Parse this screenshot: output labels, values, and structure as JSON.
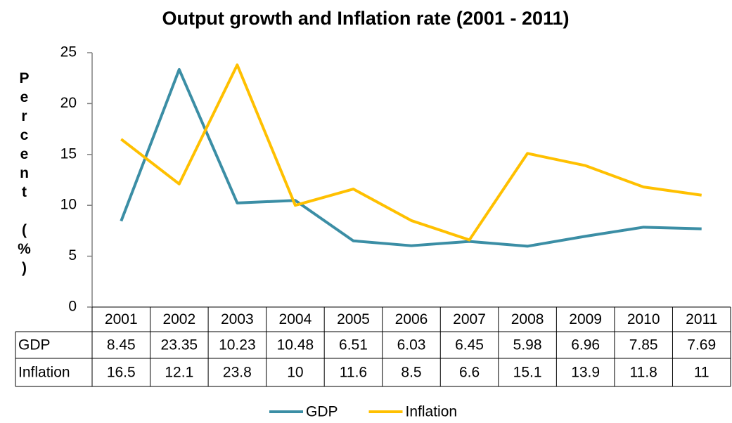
{
  "chart_data": {
    "type": "line",
    "title": "Output growth and Inflation rate (2001 - 2011)",
    "y_label": "Percent (%)",
    "categories": [
      "2001",
      "2002",
      "2003",
      "2004",
      "2005",
      "2006",
      "2007",
      "2008",
      "2009",
      "2010",
      "2011"
    ],
    "series": [
      {
        "name": "GDP",
        "color": "#3b8ea5",
        "values": [
          8.45,
          23.35,
          10.23,
          10.48,
          6.51,
          6.03,
          6.45,
          5.98,
          6.96,
          7.85,
          7.69
        ]
      },
      {
        "name": "Inflation",
        "color": "#ffc000",
        "values": [
          16.5,
          12.1,
          23.8,
          10,
          11.6,
          8.5,
          6.6,
          15.1,
          13.9,
          11.8,
          11
        ]
      }
    ],
    "ylim": [
      0,
      25
    ],
    "yticks": [
      0,
      5,
      10,
      15,
      20,
      25
    ],
    "grid": false,
    "legend": "bottom",
    "data_table": true
  }
}
